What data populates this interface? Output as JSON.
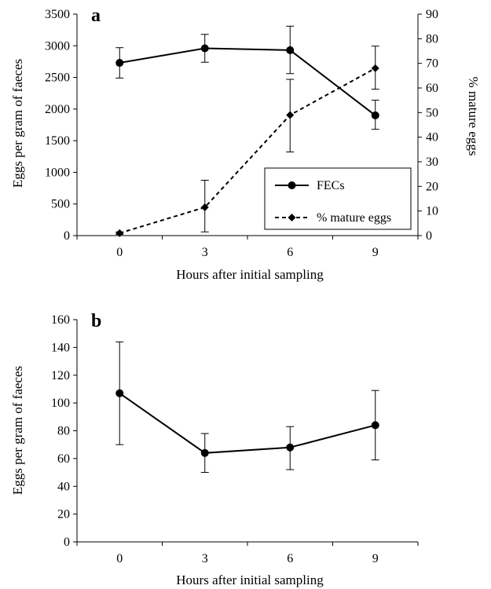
{
  "chart_data": [
    {
      "panel_label": "a",
      "type": "line",
      "x": [
        0,
        3,
        6,
        9
      ],
      "xlabel": "Hours after initial sampling",
      "ylabel": "Eggs per gram of faeces",
      "y2label": "% mature eggs",
      "ylim": [
        0,
        3500
      ],
      "y2lim": [
        0,
        90
      ],
      "yticks": [
        0,
        500,
        1000,
        1500,
        2000,
        2500,
        3000,
        3500
      ],
      "y2ticks": [
        0,
        10,
        20,
        30,
        40,
        50,
        60,
        70,
        80,
        90
      ],
      "xticks": [
        0,
        3,
        6,
        9
      ],
      "grid": false,
      "legend_position": "bottom-right",
      "series": [
        {
          "name": "FECs",
          "axis": "left",
          "style": "solid",
          "marker": "circle",
          "values": [
            2730,
            2960,
            2930,
            1900
          ],
          "error_low": [
            2490,
            2740,
            2560,
            1680
          ],
          "error_high": [
            2970,
            3180,
            3310,
            2140
          ]
        },
        {
          "name": "% mature eggs",
          "axis": "right",
          "style": "dashed",
          "marker": "diamond",
          "values": [
            1,
            11.5,
            49,
            68
          ],
          "error_low": [
            0.5,
            1.5,
            34,
            59.5
          ],
          "error_high": [
            1.5,
            22.5,
            63.5,
            77
          ]
        }
      ]
    },
    {
      "panel_label": "b",
      "type": "line",
      "x": [
        0,
        3,
        6,
        9
      ],
      "xlabel": "Hours after initial sampling",
      "ylabel": "Eggs per gram of faeces",
      "ylim": [
        0,
        160
      ],
      "yticks": [
        0,
        20,
        40,
        60,
        80,
        100,
        120,
        140,
        160
      ],
      "xticks": [
        0,
        3,
        6,
        9
      ],
      "grid": false,
      "series": [
        {
          "style": "solid",
          "marker": "circle",
          "values": [
            107,
            64,
            68,
            84
          ],
          "error_low": [
            70,
            50,
            52,
            59
          ],
          "error_high": [
            144,
            78,
            83,
            109
          ]
        }
      ]
    }
  ]
}
